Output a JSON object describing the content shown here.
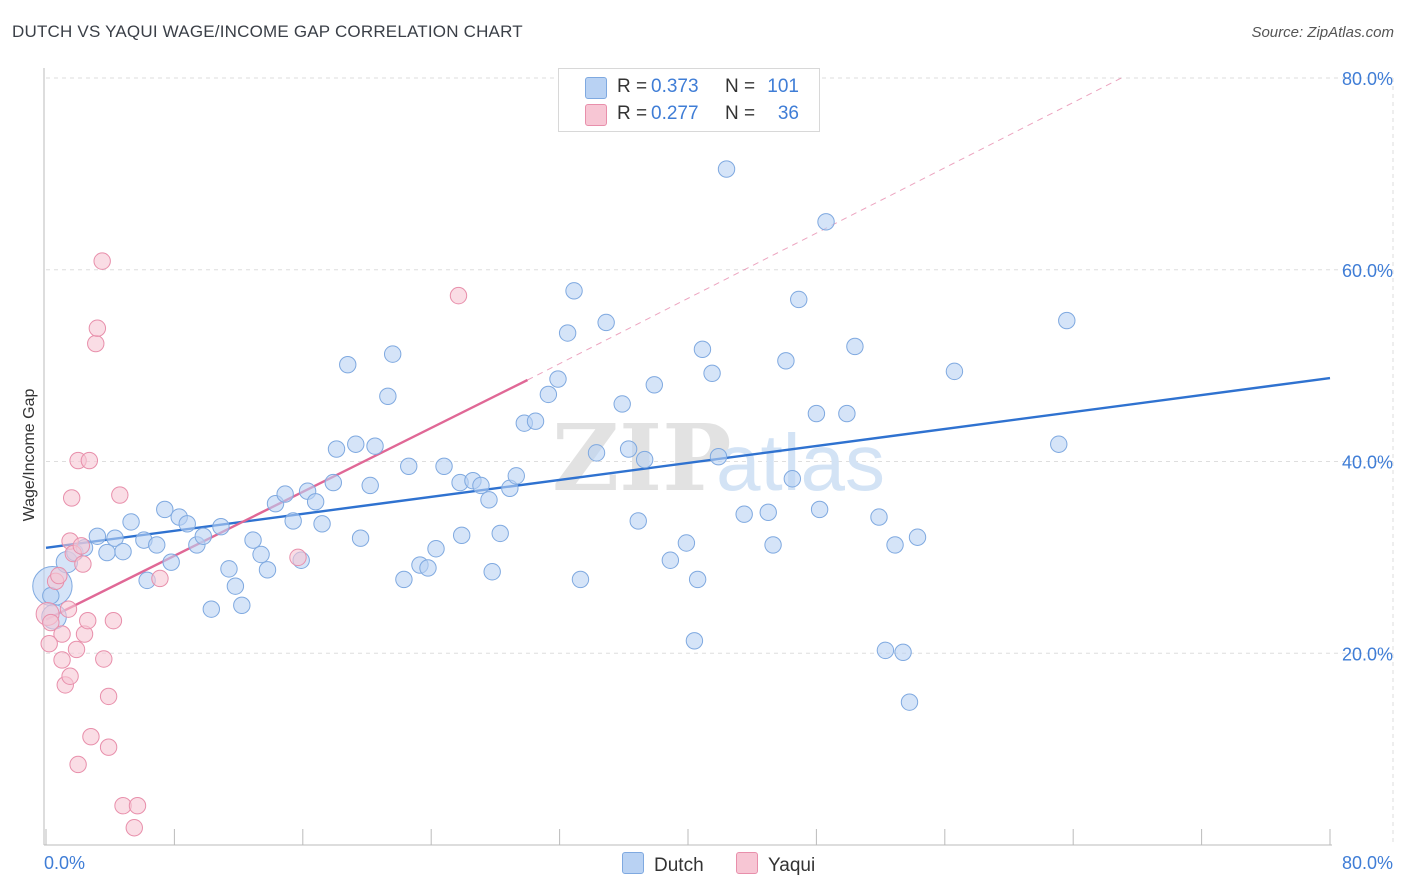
{
  "header": {
    "title": "DUTCH VS YAQUI WAGE/INCOME GAP CORRELATION CHART",
    "source": "Source: ZipAtlas.com"
  },
  "legend": {
    "rows": [
      {
        "r_label": "R = ",
        "r_value": "0.373",
        "n_label": "N = ",
        "n_value": "101"
      },
      {
        "r_label": "R = ",
        "r_value": "0.277",
        "n_label": "N = ",
        "n_value": "36"
      }
    ],
    "series": [
      "Dutch",
      "Yaqui"
    ]
  },
  "colors": {
    "dutch_fill": "#b9d2f3",
    "dutch_stroke": "#7fa9e0",
    "dutch_line": "#2f72d0",
    "yaqui_fill": "#f7c6d4",
    "yaqui_stroke": "#e88fab",
    "yaqui_line": "#e06896",
    "grid": "#dedede",
    "tick_label": "#3f7dd6"
  },
  "watermark": {
    "part1": "ZIP",
    "part2": "atlas"
  },
  "chart_data": {
    "type": "scatter",
    "title": "DUTCH VS YAQUI WAGE/INCOME GAP CORRELATION CHART",
    "xlabel": "",
    "ylabel": "Wage/Income Gap",
    "xlim": [
      0,
      80
    ],
    "ylim": [
      0,
      80
    ],
    "x_tick_labels": [
      "0.0%",
      "80.0%"
    ],
    "y_ticks": [
      20,
      40,
      60,
      80
    ],
    "y_tick_labels": [
      "20.0%",
      "40.0%",
      "60.0%",
      "80.0%"
    ],
    "grid": true,
    "legend_position": "top-center",
    "series": [
      {
        "name": "Dutch",
        "r": 0.373,
        "n": 101,
        "trend": {
          "x": [
            0,
            80
          ],
          "y": [
            31.0,
            48.7
          ]
        },
        "points": [
          [
            0.4,
            27.0,
            2.4
          ],
          [
            0.5,
            23.8,
            1.5
          ],
          [
            1.3,
            29.5,
            1.3
          ],
          [
            1.8,
            30.5,
            1.0
          ],
          [
            2.4,
            31.0,
            1
          ],
          [
            3.2,
            32.2,
            1
          ],
          [
            3.8,
            30.5,
            1
          ],
          [
            4.3,
            32.0,
            1
          ],
          [
            4.8,
            30.6,
            1
          ],
          [
            5.3,
            33.7,
            1
          ],
          [
            6.1,
            31.8,
            1
          ],
          [
            6.3,
            27.6,
            1
          ],
          [
            6.9,
            31.3,
            1
          ],
          [
            7.4,
            35.0,
            1
          ],
          [
            7.8,
            29.5,
            1
          ],
          [
            8.3,
            34.2,
            1
          ],
          [
            8.8,
            33.5,
            1
          ],
          [
            9.4,
            31.3,
            1
          ],
          [
            9.8,
            32.2,
            1
          ],
          [
            10.3,
            24.6,
            1
          ],
          [
            10.9,
            33.2,
            1
          ],
          [
            11.4,
            28.8,
            1
          ],
          [
            11.8,
            27.0,
            1
          ],
          [
            12.2,
            25.0,
            1
          ],
          [
            12.9,
            31.8,
            1
          ],
          [
            13.4,
            30.3,
            1
          ],
          [
            13.8,
            28.7,
            1
          ],
          [
            14.3,
            35.6,
            1
          ],
          [
            14.9,
            36.6,
            1
          ],
          [
            15.4,
            33.8,
            1
          ],
          [
            15.9,
            29.7,
            1
          ],
          [
            16.3,
            36.9,
            1
          ],
          [
            16.8,
            35.8,
            1
          ],
          [
            17.2,
            33.5,
            1
          ],
          [
            17.9,
            37.8,
            1
          ],
          [
            18.1,
            41.3,
            1
          ],
          [
            18.8,
            50.1,
            1
          ],
          [
            19.3,
            41.8,
            1
          ],
          [
            19.6,
            32.0,
            1
          ],
          [
            20.2,
            37.5,
            1
          ],
          [
            20.5,
            41.6,
            1
          ],
          [
            21.3,
            46.8,
            1
          ],
          [
            21.6,
            51.2,
            1
          ],
          [
            22.3,
            27.7,
            1
          ],
          [
            22.6,
            39.5,
            1
          ],
          [
            23.3,
            29.2,
            1
          ],
          [
            23.8,
            28.9,
            1
          ],
          [
            24.3,
            30.9,
            1
          ],
          [
            24.8,
            39.5,
            1
          ],
          [
            25.8,
            37.8,
            1
          ],
          [
            25.9,
            32.3,
            1
          ],
          [
            26.6,
            38.0,
            1
          ],
          [
            27.1,
            37.5,
            1
          ],
          [
            27.6,
            36.0,
            1
          ],
          [
            27.8,
            28.5,
            1
          ],
          [
            28.3,
            32.5,
            1
          ],
          [
            28.9,
            37.2,
            1
          ],
          [
            29.3,
            38.5,
            1
          ],
          [
            29.8,
            44.0,
            1
          ],
          [
            30.5,
            44.2,
            1
          ],
          [
            31.3,
            47.0,
            1
          ],
          [
            31.9,
            48.6,
            1
          ],
          [
            32.5,
            53.4,
            1
          ],
          [
            32.9,
            57.8,
            1
          ],
          [
            33.3,
            27.7,
            1
          ],
          [
            34.3,
            40.9,
            1
          ],
          [
            34.9,
            54.5,
            1
          ],
          [
            35.9,
            46.0,
            1
          ],
          [
            36.3,
            41.3,
            1
          ],
          [
            36.9,
            33.8,
            1
          ],
          [
            37.3,
            40.2,
            1
          ],
          [
            37.9,
            48.0,
            1
          ],
          [
            38.9,
            29.7,
            1
          ],
          [
            39.9,
            31.5,
            1
          ],
          [
            40.4,
            21.3,
            1
          ],
          [
            40.6,
            27.7,
            1
          ],
          [
            40.9,
            51.7,
            1
          ],
          [
            41.5,
            49.2,
            1
          ],
          [
            41.9,
            40.5,
            1
          ],
          [
            42.4,
            70.5,
            1
          ],
          [
            43.5,
            34.5,
            1
          ],
          [
            45.0,
            34.7,
            1
          ],
          [
            45.3,
            31.3,
            1
          ],
          [
            46.1,
            50.5,
            1
          ],
          [
            46.5,
            38.2,
            1
          ],
          [
            46.9,
            56.9,
            1
          ],
          [
            48.0,
            45.0,
            1
          ],
          [
            48.2,
            35.0,
            1
          ],
          [
            48.6,
            65.0,
            1
          ],
          [
            49.9,
            45.0,
            1
          ],
          [
            50.4,
            52.0,
            1
          ],
          [
            51.9,
            34.2,
            1
          ],
          [
            52.3,
            20.3,
            1
          ],
          [
            52.9,
            31.3,
            1
          ],
          [
            53.4,
            20.1,
            1
          ],
          [
            53.8,
            14.9,
            1
          ],
          [
            54.3,
            32.1,
            1
          ],
          [
            56.6,
            49.4,
            1
          ],
          [
            63.1,
            41.8,
            1
          ],
          [
            63.6,
            54.7,
            1
          ],
          [
            0.3,
            26.0,
            1
          ]
        ]
      },
      {
        "name": "Yaqui",
        "r": 0.277,
        "n": 36,
        "trend": {
          "x": [
            0,
            30
          ],
          "y": [
            23.5,
            48.5
          ]
        },
        "trend_extension": {
          "x": [
            30,
            67
          ],
          "y": [
            48.5,
            80.0
          ]
        },
        "points": [
          [
            0.1,
            24.1,
            1.4
          ],
          [
            0.3,
            23.2,
            1
          ],
          [
            0.6,
            27.5,
            1
          ],
          [
            0.8,
            28.1,
            1
          ],
          [
            1.0,
            22.0,
            1
          ],
          [
            1.0,
            19.3,
            1
          ],
          [
            1.2,
            16.7,
            1
          ],
          [
            1.4,
            24.6,
            1
          ],
          [
            1.5,
            17.6,
            1
          ],
          [
            1.5,
            31.7,
            1
          ],
          [
            1.6,
            36.2,
            1
          ],
          [
            1.7,
            30.4,
            1
          ],
          [
            1.9,
            20.4,
            1
          ],
          [
            2.0,
            8.4,
            1
          ],
          [
            2.0,
            40.1,
            1
          ],
          [
            2.2,
            31.2,
            1
          ],
          [
            2.3,
            29.3,
            1
          ],
          [
            2.4,
            22.0,
            1
          ],
          [
            2.6,
            23.4,
            1
          ],
          [
            2.7,
            40.1,
            1
          ],
          [
            2.8,
            11.3,
            1
          ],
          [
            3.1,
            52.3,
            1
          ],
          [
            3.2,
            53.9,
            1
          ],
          [
            3.5,
            60.9,
            1
          ],
          [
            3.6,
            19.4,
            1
          ],
          [
            3.9,
            15.5,
            1
          ],
          [
            3.9,
            10.2,
            1
          ],
          [
            4.2,
            23.4,
            1
          ],
          [
            4.6,
            36.5,
            1
          ],
          [
            4.8,
            4.1,
            1
          ],
          [
            5.5,
            1.8,
            1
          ],
          [
            5.7,
            4.1,
            1
          ],
          [
            7.1,
            27.8,
            1
          ],
          [
            15.7,
            30.0,
            1
          ],
          [
            25.7,
            57.3,
            1
          ],
          [
            0.2,
            21.0,
            1
          ]
        ]
      }
    ]
  }
}
